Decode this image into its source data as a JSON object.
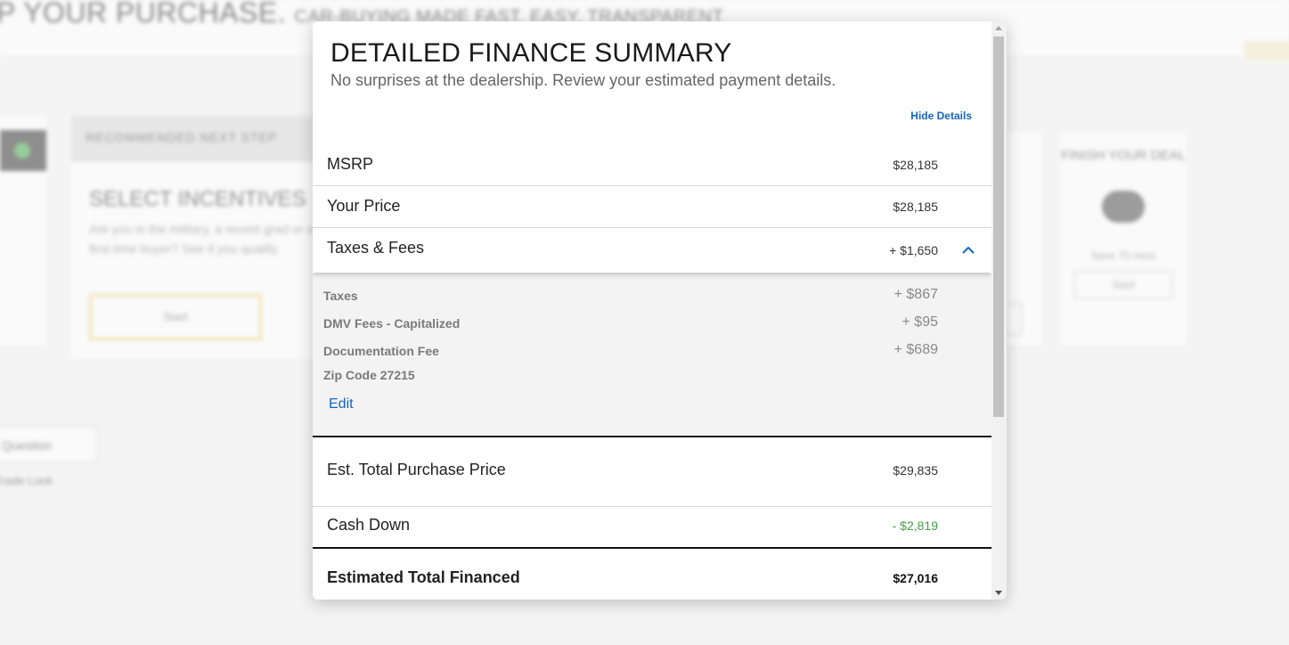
{
  "background": {
    "header_title": "P YOUR PURCHASE.",
    "header_tagline": "CAR-BUYING MADE FAST, EASY, TRANSPARENT",
    "recommended_label": "RECOMMENDED NEXT STEP",
    "card_title": "SELECT INCENTIVES",
    "card_text": "Are you in the military, a recent grad or a first-time buyer? See if you qualify.",
    "card_button": "Start",
    "finish_title": "FINISH YOUR DEAL",
    "finish_text": "Save 70 mins",
    "finish_button": "Start",
    "left_button": "Question",
    "left_link": "Trade Look"
  },
  "modal": {
    "title": "DETAILED FINANCE SUMMARY",
    "subtitle": "No surprises at the dealership. Review your estimated payment details.",
    "hide_details": "Hide Details",
    "msrp": {
      "label": "MSRP",
      "value": "$28,185"
    },
    "your_price": {
      "label": "Your Price",
      "value": "$28,185"
    },
    "taxes_fees": {
      "label": "Taxes & Fees",
      "value": "+ $1,650"
    },
    "fees": [
      {
        "label": "Taxes",
        "value": "+ $867"
      },
      {
        "label": "DMV Fees - Capitalized",
        "value": "+ $95"
      },
      {
        "label": "Documentation Fee",
        "value": "+ $689"
      }
    ],
    "zip_code": "Zip Code 27215",
    "edit": "Edit",
    "total_purchase": {
      "label": "Est. Total Purchase Price",
      "value": "$29,835"
    },
    "cash_down": {
      "label": "Cash Down",
      "value": "- $2,819"
    },
    "total_financed": {
      "label": "Estimated Total Financed",
      "value": "$27,016"
    }
  },
  "colors": {
    "link": "#1565c0",
    "negative_amount": "#43a047",
    "accent_border": "#f2d57a"
  }
}
